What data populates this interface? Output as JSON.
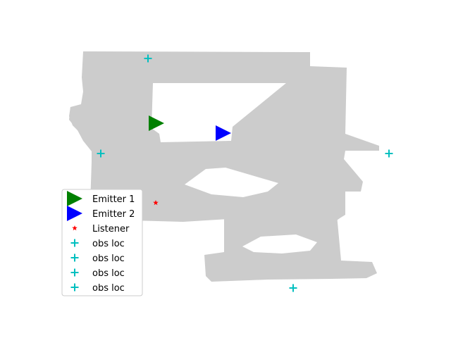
{
  "chart_data": {
    "type": "scatter",
    "title": "",
    "xlabel": "",
    "ylabel": "",
    "axes_visible": false,
    "grid": false,
    "legend_placement": "lower-left",
    "floor_map": {
      "name": "",
      "color": "#cccccc"
    },
    "series": [
      {
        "name": "Emitter 1",
        "marker": "triangle-right",
        "color": "#008000",
        "points": [
          {
            "x": 222,
            "y": 175
          }
        ]
      },
      {
        "name": "Emitter 2",
        "marker": "triangle-right",
        "color": "#0000ff",
        "points": [
          {
            "x": 317,
            "y": 189
          }
        ]
      },
      {
        "name": "Listener",
        "marker": "star",
        "color": "#ff0000",
        "points": [
          {
            "x": 221,
            "y": 288
          }
        ]
      },
      {
        "name": "obs loc",
        "marker": "plus",
        "color": "#00bfbf",
        "points": [
          {
            "x": 210,
            "y": 83
          }
        ]
      },
      {
        "name": "obs loc",
        "marker": "plus",
        "color": "#00bfbf",
        "points": [
          {
            "x": 143,
            "y": 218
          }
        ]
      },
      {
        "name": "obs loc",
        "marker": "plus",
        "color": "#00bfbf",
        "points": [
          {
            "x": 552,
            "y": 218
          }
        ]
      },
      {
        "name": "obs loc",
        "marker": "plus",
        "color": "#00bfbf",
        "points": [
          {
            "x": 416,
            "y": 409
          }
        ]
      }
    ]
  }
}
